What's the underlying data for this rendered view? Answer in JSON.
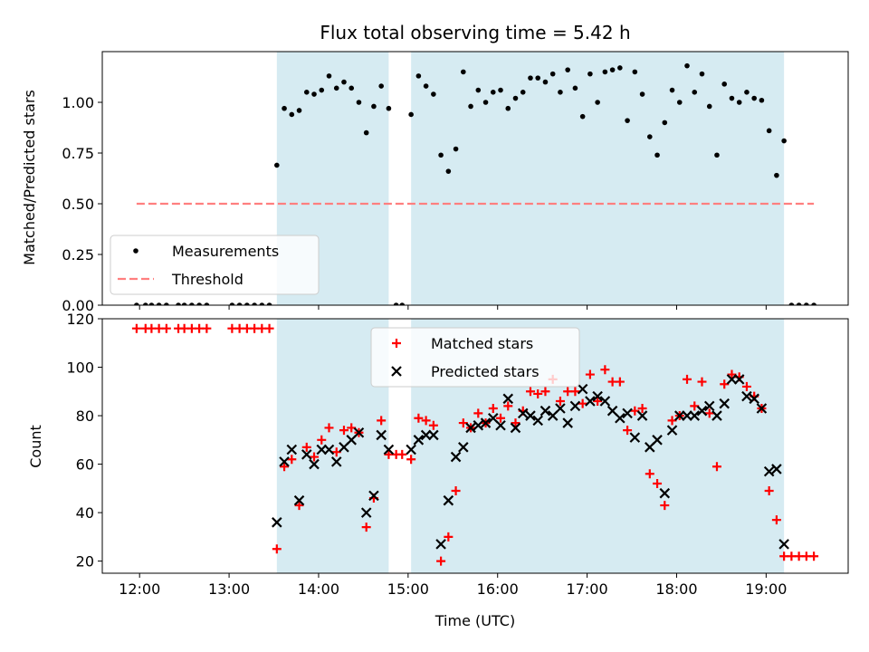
{
  "chart_data": [
    {
      "type": "scatter",
      "title": "Flux total observing time = 5.42 h",
      "xlabel": "",
      "ylabel": "Matched/Predicted stars",
      "xlim": [
        "11:35",
        "19:55"
      ],
      "ylim": [
        0,
        1.25
      ],
      "yticks": [
        "0.00",
        "0.25",
        "0.50",
        "0.75",
        "1.00"
      ],
      "xticks": [
        "12:00",
        "13:00",
        "14:00",
        "15:00",
        "16:00",
        "17:00",
        "18:00",
        "19:00"
      ],
      "legend": {
        "position": "lower-left",
        "entries": [
          "Measurements",
          "Threshold"
        ]
      },
      "shaded_intervals": [
        [
          "13:32",
          "14:47"
        ],
        [
          "15:02",
          "19:12"
        ]
      ],
      "series": [
        {
          "name": "Measurements",
          "color": "#000000",
          "marker": "dot",
          "points": [
            [
              "11:58",
              0
            ],
            [
              "12:04",
              0
            ],
            [
              "12:08",
              0
            ],
            [
              "12:13",
              0
            ],
            [
              "12:18",
              0
            ],
            [
              "12:26",
              0
            ],
            [
              "12:30",
              0
            ],
            [
              "12:35",
              0
            ],
            [
              "12:40",
              0
            ],
            [
              "12:45",
              0
            ],
            [
              "13:02",
              0
            ],
            [
              "13:07",
              0
            ],
            [
              "13:12",
              0
            ],
            [
              "13:17",
              0
            ],
            [
              "13:22",
              0
            ],
            [
              "13:27",
              0
            ],
            [
              "13:32",
              0.69
            ],
            [
              "13:37",
              0.97
            ],
            [
              "13:42",
              0.94
            ],
            [
              "13:47",
              0.96
            ],
            [
              "13:52",
              1.05
            ],
            [
              "13:57",
              1.04
            ],
            [
              "14:02",
              1.06
            ],
            [
              "14:07",
              1.13
            ],
            [
              "14:12",
              1.07
            ],
            [
              "14:17",
              1.1
            ],
            [
              "14:22",
              1.07
            ],
            [
              "14:27",
              1.0
            ],
            [
              "14:32",
              0.85
            ],
            [
              "14:37",
              0.98
            ],
            [
              "14:42",
              1.08
            ],
            [
              "14:47",
              0.97
            ],
            [
              "14:52",
              0
            ],
            [
              "14:56",
              0
            ],
            [
              "15:02",
              0.94
            ],
            [
              "15:07",
              1.13
            ],
            [
              "15:12",
              1.08
            ],
            [
              "15:17",
              1.04
            ],
            [
              "15:22",
              0.74
            ],
            [
              "15:27",
              0.66
            ],
            [
              "15:32",
              0.77
            ],
            [
              "15:37",
              1.15
            ],
            [
              "15:42",
              0.98
            ],
            [
              "15:47",
              1.06
            ],
            [
              "15:52",
              1.0
            ],
            [
              "15:57",
              1.05
            ],
            [
              "16:02",
              1.06
            ],
            [
              "16:07",
              0.97
            ],
            [
              "16:12",
              1.02
            ],
            [
              "16:17",
              1.05
            ],
            [
              "16:22",
              1.12
            ],
            [
              "16:27",
              1.12
            ],
            [
              "16:32",
              1.1
            ],
            [
              "16:37",
              1.14
            ],
            [
              "16:42",
              1.05
            ],
            [
              "16:47",
              1.16
            ],
            [
              "16:52",
              1.07
            ],
            [
              "16:57",
              0.93
            ],
            [
              "17:02",
              1.14
            ],
            [
              "17:07",
              1.0
            ],
            [
              "17:12",
              1.15
            ],
            [
              "17:17",
              1.16
            ],
            [
              "17:22",
              1.17
            ],
            [
              "17:27",
              0.91
            ],
            [
              "17:32",
              1.15
            ],
            [
              "17:37",
              1.04
            ],
            [
              "17:42",
              0.83
            ],
            [
              "17:47",
              0.74
            ],
            [
              "17:52",
              0.9
            ],
            [
              "17:57",
              1.06
            ],
            [
              "18:02",
              1.0
            ],
            [
              "18:07",
              1.18
            ],
            [
              "18:12",
              1.05
            ],
            [
              "18:17",
              1.14
            ],
            [
              "18:22",
              0.98
            ],
            [
              "18:27",
              0.74
            ],
            [
              "18:32",
              1.09
            ],
            [
              "18:37",
              1.02
            ],
            [
              "18:42",
              1.0
            ],
            [
              "18:47",
              1.05
            ],
            [
              "18:52",
              1.02
            ],
            [
              "18:57",
              1.01
            ],
            [
              "19:02",
              0.86
            ],
            [
              "19:07",
              0.64
            ],
            [
              "19:12",
              0.81
            ],
            [
              "19:17",
              0
            ],
            [
              "19:22",
              0
            ],
            [
              "19:27",
              0
            ],
            [
              "19:32",
              0
            ]
          ]
        },
        {
          "name": "Threshold",
          "color": "#ff7f7f",
          "style": "dashed",
          "points": [
            [
              "11:58",
              0.5
            ],
            [
              "19:32",
              0.5
            ]
          ]
        }
      ]
    },
    {
      "type": "scatter",
      "title": "",
      "xlabel": "Time (UTC)",
      "ylabel": "Count",
      "xlim": [
        "11:35",
        "19:55"
      ],
      "ylim": [
        15,
        120
      ],
      "yticks": [
        "20",
        "40",
        "60",
        "80",
        "100",
        "120"
      ],
      "xticks": [
        "12:00",
        "13:00",
        "14:00",
        "15:00",
        "16:00",
        "17:00",
        "18:00",
        "19:00"
      ],
      "legend": {
        "position": "top-center",
        "entries": [
          "Matched stars",
          "Predicted stars"
        ]
      },
      "shaded_intervals": [
        [
          "13:32",
          "14:47"
        ],
        [
          "15:02",
          "19:12"
        ]
      ],
      "series": [
        {
          "name": "Matched stars",
          "color": "#ff0000",
          "marker": "plus",
          "points": [
            [
              "11:58",
              116
            ],
            [
              "12:04",
              116
            ],
            [
              "12:08",
              116
            ],
            [
              "12:13",
              116
            ],
            [
              "12:18",
              116
            ],
            [
              "12:26",
              116
            ],
            [
              "12:30",
              116
            ],
            [
              "12:35",
              116
            ],
            [
              "12:40",
              116
            ],
            [
              "12:45",
              116
            ],
            [
              "13:02",
              116
            ],
            [
              "13:07",
              116
            ],
            [
              "13:12",
              116
            ],
            [
              "13:17",
              116
            ],
            [
              "13:22",
              116
            ],
            [
              "13:27",
              116
            ],
            [
              "13:32",
              25
            ],
            [
              "13:37",
              59
            ],
            [
              "13:42",
              62
            ],
            [
              "13:47",
              43
            ],
            [
              "13:52",
              67
            ],
            [
              "13:57",
              63
            ],
            [
              "14:02",
              70
            ],
            [
              "14:07",
              75
            ],
            [
              "14:12",
              65
            ],
            [
              "14:17",
              74
            ],
            [
              "14:22",
              75
            ],
            [
              "14:27",
              73
            ],
            [
              "14:32",
              34
            ],
            [
              "14:37",
              46
            ],
            [
              "14:42",
              78
            ],
            [
              "14:47",
              64
            ],
            [
              "14:52",
              64
            ],
            [
              "14:56",
              64
            ],
            [
              "15:02",
              62
            ],
            [
              "15:07",
              79
            ],
            [
              "15:12",
              78
            ],
            [
              "15:17",
              76
            ],
            [
              "15:22",
              20
            ],
            [
              "15:27",
              30
            ],
            [
              "15:32",
              49
            ],
            [
              "15:37",
              77
            ],
            [
              "15:42",
              75
            ],
            [
              "15:47",
              81
            ],
            [
              "15:52",
              77
            ],
            [
              "15:57",
              83
            ],
            [
              "16:02",
              79
            ],
            [
              "16:07",
              84
            ],
            [
              "16:12",
              77
            ],
            [
              "16:17",
              82
            ],
            [
              "16:22",
              90
            ],
            [
              "16:27",
              89
            ],
            [
              "16:32",
              90
            ],
            [
              "16:37",
              95
            ],
            [
              "16:42",
              86
            ],
            [
              "16:47",
              90
            ],
            [
              "16:52",
              90
            ],
            [
              "16:57",
              85
            ],
            [
              "17:02",
              97
            ],
            [
              "17:07",
              86
            ],
            [
              "17:12",
              99
            ],
            [
              "17:17",
              94
            ],
            [
              "17:22",
              94
            ],
            [
              "17:27",
              74
            ],
            [
              "17:32",
              82
            ],
            [
              "17:37",
              83
            ],
            [
              "17:42",
              56
            ],
            [
              "17:47",
              52
            ],
            [
              "17:52",
              43
            ],
            [
              "17:57",
              78
            ],
            [
              "18:02",
              80
            ],
            [
              "18:07",
              95
            ],
            [
              "18:12",
              84
            ],
            [
              "18:17",
              94
            ],
            [
              "18:22",
              81
            ],
            [
              "18:27",
              59
            ],
            [
              "18:32",
              93
            ],
            [
              "18:37",
              97
            ],
            [
              "18:42",
              96
            ],
            [
              "18:47",
              92
            ],
            [
              "18:52",
              88
            ],
            [
              "18:57",
              83
            ],
            [
              "19:02",
              49
            ],
            [
              "19:07",
              37
            ],
            [
              "19:12",
              22
            ],
            [
              "19:17",
              22
            ],
            [
              "19:22",
              22
            ],
            [
              "19:27",
              22
            ],
            [
              "19:32",
              22
            ]
          ]
        },
        {
          "name": "Predicted stars",
          "color": "#000000",
          "marker": "x",
          "points": [
            [
              "13:32",
              36
            ],
            [
              "13:37",
              61
            ],
            [
              "13:42",
              66
            ],
            [
              "13:47",
              45
            ],
            [
              "13:52",
              64
            ],
            [
              "13:57",
              60
            ],
            [
              "14:02",
              66
            ],
            [
              "14:07",
              66
            ],
            [
              "14:12",
              61
            ],
            [
              "14:17",
              67
            ],
            [
              "14:22",
              70
            ],
            [
              "14:27",
              73
            ],
            [
              "14:32",
              40
            ],
            [
              "14:37",
              47
            ],
            [
              "14:42",
              72
            ],
            [
              "14:47",
              66
            ],
            [
              "15:02",
              66
            ],
            [
              "15:07",
              70
            ],
            [
              "15:12",
              72
            ],
            [
              "15:17",
              72
            ],
            [
              "15:22",
              27
            ],
            [
              "15:27",
              45
            ],
            [
              "15:32",
              63
            ],
            [
              "15:37",
              67
            ],
            [
              "15:42",
              75
            ],
            [
              "15:47",
              76
            ],
            [
              "15:52",
              77
            ],
            [
              "15:57",
              79
            ],
            [
              "16:02",
              76
            ],
            [
              "16:07",
              87
            ],
            [
              "16:12",
              75
            ],
            [
              "16:17",
              81
            ],
            [
              "16:22",
              80
            ],
            [
              "16:27",
              78
            ],
            [
              "16:32",
              82
            ],
            [
              "16:37",
              80
            ],
            [
              "16:42",
              83
            ],
            [
              "16:47",
              77
            ],
            [
              "16:52",
              84
            ],
            [
              "16:57",
              91
            ],
            [
              "17:02",
              86
            ],
            [
              "17:07",
              88
            ],
            [
              "17:12",
              86
            ],
            [
              "17:17",
              82
            ],
            [
              "17:22",
              79
            ],
            [
              "17:27",
              81
            ],
            [
              "17:32",
              71
            ],
            [
              "17:37",
              80
            ],
            [
              "17:42",
              67
            ],
            [
              "17:47",
              70
            ],
            [
              "17:52",
              48
            ],
            [
              "17:57",
              74
            ],
            [
              "18:02",
              80
            ],
            [
              "18:07",
              80
            ],
            [
              "18:12",
              80
            ],
            [
              "18:17",
              82
            ],
            [
              "18:22",
              84
            ],
            [
              "18:27",
              80
            ],
            [
              "18:32",
              85
            ],
            [
              "18:37",
              95
            ],
            [
              "18:42",
              95
            ],
            [
              "18:47",
              88
            ],
            [
              "18:52",
              87
            ],
            [
              "18:57",
              83
            ],
            [
              "19:02",
              57
            ],
            [
              "19:07",
              58
            ],
            [
              "19:12",
              27
            ]
          ]
        }
      ]
    }
  ],
  "colors": {
    "shade": "#add8e6",
    "axes": "#000000"
  }
}
